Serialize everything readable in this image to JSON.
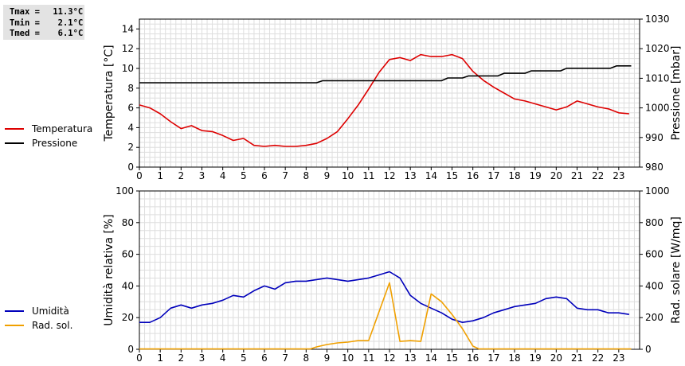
{
  "stats": [
    {
      "label": "Tmax",
      "value": "11.3°C"
    },
    {
      "label": "Tmin",
      "value": "2.1°C"
    },
    {
      "label": "Tmed",
      "value": "6.1°C"
    }
  ],
  "chart_data": [
    {
      "type": "line",
      "ylabel": "Temperatura [°C]",
      "y2label": "Pressione [mbar]",
      "xlim": [
        0,
        24
      ],
      "ylim": [
        0,
        15
      ],
      "y2lim": [
        980,
        1030
      ],
      "xticks": [
        0,
        1,
        2,
        3,
        4,
        5,
        6,
        7,
        8,
        9,
        10,
        11,
        12,
        13,
        14,
        15,
        16,
        17,
        18,
        19,
        20,
        21,
        22,
        23
      ],
      "yticks": [
        0,
        2,
        4,
        6,
        8,
        10,
        12,
        14
      ],
      "y2ticks": [
        980,
        990,
        1000,
        1010,
        1020,
        1030
      ],
      "grid": true,
      "legend_position": "left",
      "series": [
        {
          "name": "Temperatura",
          "color": "#dd0000",
          "axis": "left",
          "points": [
            [
              0,
              6.3
            ],
            [
              0.5,
              6.0
            ],
            [
              1,
              5.4
            ],
            [
              1.5,
              4.6
            ],
            [
              2,
              3.9
            ],
            [
              2.5,
              4.2
            ],
            [
              3,
              3.7
            ],
            [
              3.5,
              3.6
            ],
            [
              4,
              3.2
            ],
            [
              4.5,
              2.7
            ],
            [
              5,
              2.9
            ],
            [
              5.5,
              2.2
            ],
            [
              6,
              2.1
            ],
            [
              6.5,
              2.2
            ],
            [
              7,
              2.1
            ],
            [
              7.5,
              2.1
            ],
            [
              8,
              2.2
            ],
            [
              8.5,
              2.4
            ],
            [
              9,
              2.9
            ],
            [
              9.5,
              3.6
            ],
            [
              10,
              4.9
            ],
            [
              10.5,
              6.3
            ],
            [
              11,
              7.9
            ],
            [
              11.5,
              9.6
            ],
            [
              12,
              10.9
            ],
            [
              12.5,
              11.1
            ],
            [
              13,
              10.8
            ],
            [
              13.5,
              11.4
            ],
            [
              14,
              11.2
            ],
            [
              14.5,
              11.2
            ],
            [
              15,
              11.4
            ],
            [
              15.5,
              11.0
            ],
            [
              16,
              9.7
            ],
            [
              16.5,
              8.8
            ],
            [
              17,
              8.1
            ],
            [
              17.5,
              7.5
            ],
            [
              18,
              6.9
            ],
            [
              18.5,
              6.7
            ],
            [
              19,
              6.4
            ],
            [
              19.5,
              6.1
            ],
            [
              20,
              5.8
            ],
            [
              20.5,
              6.1
            ],
            [
              21,
              6.7
            ],
            [
              21.5,
              6.4
            ],
            [
              22,
              6.1
            ],
            [
              22.5,
              5.9
            ],
            [
              23,
              5.5
            ],
            [
              23.5,
              5.4
            ]
          ]
        },
        {
          "name": "Pressione",
          "color": "#000000",
          "axis": "right",
          "points": [
            [
              0,
              1008.5
            ],
            [
              8.5,
              1008.5
            ],
            [
              8.8,
              1009.2
            ],
            [
              14.5,
              1009.2
            ],
            [
              14.8,
              1010.1
            ],
            [
              15.5,
              1010.1
            ],
            [
              15.8,
              1010.8
            ],
            [
              17.2,
              1010.8
            ],
            [
              17.5,
              1011.7
            ],
            [
              18.5,
              1011.7
            ],
            [
              18.8,
              1012.5
            ],
            [
              20.2,
              1012.5
            ],
            [
              20.5,
              1013.4
            ],
            [
              22.6,
              1013.4
            ],
            [
              22.9,
              1014.2
            ],
            [
              23.6,
              1014.2
            ]
          ]
        }
      ]
    },
    {
      "type": "line",
      "ylabel": "Umidità relativa [%]",
      "y2label": "Rad. solare [W/mq]",
      "xlim": [
        0,
        24
      ],
      "ylim": [
        0,
        100
      ],
      "y2lim": [
        0,
        1000
      ],
      "xticks": [
        0,
        1,
        2,
        3,
        4,
        5,
        6,
        7,
        8,
        9,
        10,
        11,
        12,
        13,
        14,
        15,
        16,
        17,
        18,
        19,
        20,
        21,
        22,
        23
      ],
      "yticks": [
        0,
        20,
        40,
        60,
        80,
        100
      ],
      "y2ticks": [
        0,
        200,
        400,
        600,
        800,
        1000
      ],
      "grid": true,
      "legend_position": "left",
      "series": [
        {
          "name": "Umidità",
          "color": "#0000bb",
          "axis": "left",
          "points": [
            [
              0,
              17
            ],
            [
              0.5,
              17
            ],
            [
              1,
              20
            ],
            [
              1.5,
              26
            ],
            [
              2,
              28
            ],
            [
              2.5,
              26
            ],
            [
              3,
              28
            ],
            [
              3.5,
              29
            ],
            [
              4,
              31
            ],
            [
              4.5,
              34
            ],
            [
              5,
              33
            ],
            [
              5.5,
              37
            ],
            [
              6,
              40
            ],
            [
              6.5,
              38
            ],
            [
              7,
              42
            ],
            [
              7.5,
              43
            ],
            [
              8,
              43
            ],
            [
              8.5,
              44
            ],
            [
              9,
              45
            ],
            [
              9.5,
              44
            ],
            [
              10,
              43
            ],
            [
              10.5,
              44
            ],
            [
              11,
              45
            ],
            [
              11.5,
              47
            ],
            [
              12,
              49
            ],
            [
              12.5,
              45
            ],
            [
              13,
              34
            ],
            [
              13.5,
              29
            ],
            [
              14,
              26
            ],
            [
              14.5,
              23
            ],
            [
              15,
              19
            ],
            [
              15.5,
              17
            ],
            [
              16,
              18
            ],
            [
              16.5,
              20
            ],
            [
              17,
              23
            ],
            [
              17.5,
              25
            ],
            [
              18,
              27
            ],
            [
              18.5,
              28
            ],
            [
              19,
              29
            ],
            [
              19.5,
              32
            ],
            [
              20,
              33
            ],
            [
              20.5,
              32
            ],
            [
              21,
              26
            ],
            [
              21.5,
              25
            ],
            [
              22,
              25
            ],
            [
              22.5,
              23
            ],
            [
              23,
              23
            ],
            [
              23.5,
              22
            ]
          ]
        },
        {
          "name": "Rad. sol.",
          "color": "#f0a000",
          "axis": "right",
          "points": [
            [
              0,
              2
            ],
            [
              8.2,
              2
            ],
            [
              8.5,
              15
            ],
            [
              9,
              30
            ],
            [
              9.5,
              40
            ],
            [
              10,
              45
            ],
            [
              10.5,
              55
            ],
            [
              11,
              55
            ],
            [
              12,
              420
            ],
            [
              12.5,
              50
            ],
            [
              13,
              55
            ],
            [
              13.5,
              50
            ],
            [
              14,
              350
            ],
            [
              14.5,
              300
            ],
            [
              15,
              220
            ],
            [
              15.5,
              130
            ],
            [
              16,
              20
            ],
            [
              16.3,
              2
            ],
            [
              23.6,
              2
            ]
          ]
        }
      ]
    }
  ]
}
